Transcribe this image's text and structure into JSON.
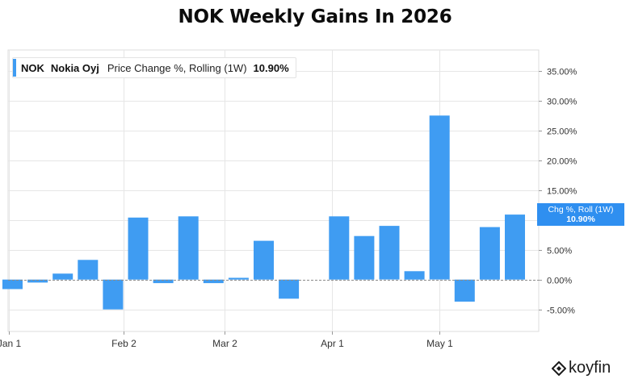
{
  "chart_data": {
    "type": "bar",
    "title": "NOK Weekly Gains In 2026",
    "legend": {
      "ticker": "NOK",
      "company": "Nokia Oyj",
      "metric": "Price Change %, Rolling (1W)",
      "value": "10.90%"
    },
    "y_flag": {
      "label": "Chg %, Roll (1W)",
      "value": "10.90%",
      "level": 10.9
    },
    "x_tick_labels": [
      "Jan 1",
      "Feb 2",
      "Mar 2",
      "Apr 1",
      "May 1"
    ],
    "y_tick_labels": [
      "35.00%",
      "30.00%",
      "25.00%",
      "20.00%",
      "15.00%",
      "10.00%",
      "5.00%",
      "0.00%",
      "-5.00%"
    ],
    "ylim": [
      -8.7,
      38.5
    ],
    "grid": true,
    "legend_placement": "top-left",
    "series": [
      {
        "x": [
          "2026-01-02",
          "2026-01-09",
          "2026-01-16",
          "2026-01-23",
          "2026-01-30",
          "2026-02-06",
          "2026-02-13",
          "2026-02-20",
          "2026-02-27",
          "2026-03-06",
          "2026-03-13",
          "2026-03-20",
          "2026-03-27",
          "2026-04-03",
          "2026-04-10",
          "2026-04-17",
          "2026-04-24",
          "2026-05-01",
          "2026-05-08",
          "2026-05-15",
          "2026-05-22"
        ],
        "values": [
          -1.6,
          -0.5,
          1.0,
          3.3,
          -5.0,
          10.4,
          -0.6,
          10.6,
          -0.6,
          0.3,
          6.5,
          -3.2,
          0,
          10.6,
          7.3,
          9.0,
          1.4,
          27.5,
          -3.7,
          8.8,
          10.9
        ]
      }
    ],
    "colors": {
      "bar": "#3f9cf2",
      "grid": "#e6e6e6",
      "zero_line": "#8a8a8a",
      "flag": "#2f8ff0"
    }
  },
  "brand": {
    "name": "koyfin",
    "icon": "koyfin-logo-icon"
  }
}
